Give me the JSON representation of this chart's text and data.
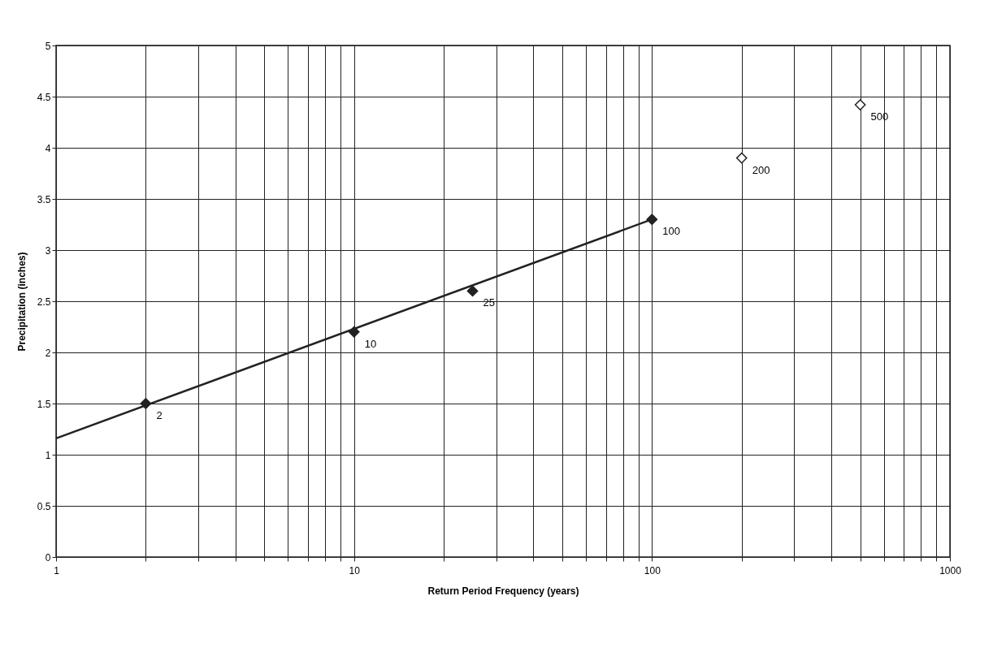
{
  "chart_data": {
    "type": "scatter",
    "xlabel": "Return Period Frequency (years)",
    "ylabel": "Precipitation (inches)",
    "log": "x",
    "grid": true,
    "marker": "diamond",
    "line_style": "solid",
    "xlim": [
      1,
      1000
    ],
    "ylim": [
      0,
      5
    ],
    "xticks": [
      1,
      {
        "value": 2,
        "label": null
      },
      {
        "value": 3,
        "label": null
      },
      {
        "value": 4,
        "label": null
      },
      {
        "value": 5,
        "label": null
      },
      {
        "value": 6,
        "label": null
      },
      {
        "value": 7,
        "label": null
      },
      {
        "value": 8,
        "label": null
      },
      {
        "value": 9,
        "label": null
      },
      10,
      {
        "value": 20,
        "label": null
      },
      {
        "value": 30,
        "label": null
      },
      {
        "value": 40,
        "label": null
      },
      {
        "value": 50,
        "label": null
      },
      {
        "value": 60,
        "label": null
      },
      {
        "value": 70,
        "label": null
      },
      {
        "value": 80,
        "label": null
      },
      {
        "value": 90,
        "label": null
      },
      100,
      {
        "value": 200,
        "label": null
      },
      {
        "value": 300,
        "label": null
      },
      {
        "value": 400,
        "label": null
      },
      {
        "value": 500,
        "label": null
      },
      {
        "value": 600,
        "label": null
      },
      {
        "value": 700,
        "label": null
      },
      {
        "value": 800,
        "label": null
      },
      {
        "value": 900,
        "label": null
      },
      1000
    ],
    "yticks": [
      0,
      0.5,
      1,
      1.5,
      2,
      2.5,
      3,
      3.5,
      4,
      4.5,
      5
    ],
    "series": [
      {
        "type": "line",
        "marker": "none",
        "color": "#222222",
        "x": [
          1,
          100
        ],
        "values": [
          1.16,
          3.3
        ]
      },
      {
        "color": "#222222",
        "x": [
          2,
          10,
          25,
          100
        ],
        "values": [
          1.5,
          2.2,
          2.6,
          3.3
        ]
      },
      {
        "color": "#ffffff",
        "x": [
          200,
          500
        ],
        "values": [
          3.9,
          4.42
        ]
      }
    ],
    "annotations": [
      {
        "text": "2",
        "x": 2,
        "y": 1.5
      },
      {
        "text": "10",
        "x": 10,
        "y": 2.2
      },
      {
        "text": "25",
        "x": 25,
        "y": 2.6
      },
      {
        "text": "100",
        "x": 100,
        "y": 3.3
      },
      {
        "text": "200",
        "x": 200,
        "y": 3.9
      },
      {
        "text": "500",
        "x": 500,
        "y": 4.42
      }
    ]
  }
}
